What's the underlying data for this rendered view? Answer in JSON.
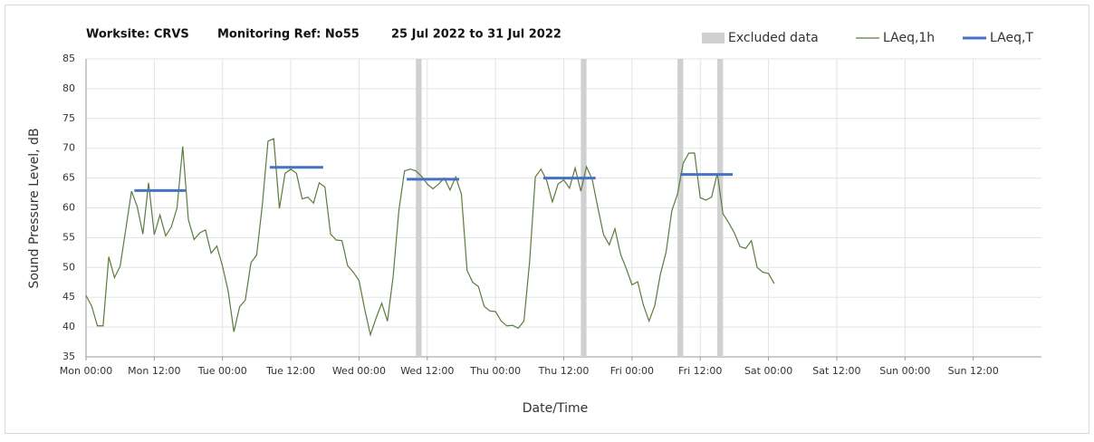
{
  "chart_data": {
    "type": "line",
    "title": [
      "Worksite: CRVS",
      "Monitoring Ref: No55",
      "25 Jul 2022 to 31 Jul 2022"
    ],
    "xlabel": "Date/Time",
    "ylabel": "Sound Pressure Level, dB",
    "xlim": [
      0,
      168
    ],
    "xticks": [
      {
        "value": 0,
        "label": "Mon 00:00"
      },
      {
        "value": 12,
        "label": "Mon 12:00"
      },
      {
        "value": 24,
        "label": "Tue 00:00"
      },
      {
        "value": 36,
        "label": "Tue 12:00"
      },
      {
        "value": 48,
        "label": "Wed 00:00"
      },
      {
        "value": 60,
        "label": "Wed 12:00"
      },
      {
        "value": 72,
        "label": "Thu 00:00"
      },
      {
        "value": 84,
        "label": "Thu 12:00"
      },
      {
        "value": 96,
        "label": "Fri 00:00"
      },
      {
        "value": 108,
        "label": "Fri 12:00"
      },
      {
        "value": 120,
        "label": "Sat 00:00"
      },
      {
        "value": 132,
        "label": "Sat 12:00"
      },
      {
        "value": 144,
        "label": "Sun 00:00"
      },
      {
        "value": 156,
        "label": "Sun 12:00"
      }
    ],
    "ylim": [
      35,
      85
    ],
    "yticks": [
      35,
      40,
      45,
      50,
      55,
      60,
      65,
      70,
      75,
      80,
      85
    ],
    "grid": true,
    "legend": "top-right",
    "excluded": {
      "name": "Excluded data",
      "color": "#d0d0d0",
      "ranges": [
        [
          58,
          59
        ],
        [
          87,
          88
        ],
        [
          104,
          105
        ],
        [
          111,
          112
        ]
      ]
    },
    "series": [
      {
        "name": "LAeq,1h",
        "color": "#5b7b3c",
        "x": [
          0,
          1,
          2,
          3,
          4,
          5,
          6,
          7,
          8,
          9,
          10,
          11,
          12,
          13,
          14,
          15,
          16,
          17,
          18,
          19,
          20,
          21,
          22,
          23,
          24,
          25,
          26,
          27,
          28,
          29,
          30,
          31,
          32,
          33,
          34,
          35,
          36,
          37,
          38,
          39,
          40,
          41,
          42,
          43,
          44,
          45,
          46,
          47,
          48,
          49,
          50,
          51,
          52,
          53,
          54,
          55,
          56,
          57,
          58,
          59,
          60,
          61,
          62,
          63,
          64,
          65,
          66,
          67,
          68,
          69,
          70,
          71,
          72,
          73,
          74,
          75,
          76,
          77,
          78,
          79,
          80,
          81,
          82,
          83,
          84,
          85,
          86,
          87,
          88,
          89,
          90,
          91,
          92,
          93,
          94,
          95,
          96,
          97,
          98,
          99,
          100,
          101,
          102,
          103,
          104,
          105,
          106,
          107,
          108,
          109,
          110,
          111,
          112,
          113,
          114,
          115,
          116,
          117,
          118,
          119,
          120,
          121
        ],
        "values": [
          45.3,
          43.5,
          40.2,
          40.2,
          51.8,
          48.3,
          50.2,
          56.5,
          62.8,
          60.2,
          55.6,
          64.2,
          55.5,
          58.8,
          55.3,
          56.8,
          60.0,
          70.3,
          58.0,
          54.7,
          55.8,
          56.3,
          52.4,
          53.6,
          50.2,
          46.0,
          39.2,
          43.4,
          44.5,
          50.8,
          52.1,
          60.5,
          71.2,
          71.6,
          59.9,
          65.8,
          66.5,
          65.8,
          61.5,
          61.8,
          60.8,
          64.2,
          63.5,
          55.6,
          54.6,
          54.5,
          50.3,
          49.2,
          47.8,
          43.0,
          38.7,
          41.5,
          44.0,
          41.0,
          48.5,
          59.5,
          66.2,
          66.5,
          66.2,
          65.3,
          64.0,
          63.2,
          64.0,
          65.0,
          63.0,
          65.2,
          62.3,
          49.5,
          47.5,
          46.8,
          43.5,
          42.7,
          42.6,
          41.0,
          40.2,
          40.3,
          39.8,
          41.0,
          51.0,
          65.2,
          66.5,
          64.6,
          61.0,
          64.0,
          64.7,
          63.3,
          66.7,
          62.8,
          66.9,
          64.8,
          60.0,
          55.5,
          53.8,
          56.5,
          52.2,
          49.8,
          47.1,
          47.6,
          43.7,
          41.0,
          43.6,
          48.9,
          52.6,
          59.5,
          62.3,
          67.5,
          69.2,
          69.2,
          61.7,
          61.3,
          61.8,
          65.8,
          59.0,
          57.5,
          55.8,
          53.5,
          53.2,
          54.5,
          50.0,
          49.2,
          49.0,
          47.3
        ]
      },
      {
        "name": "LAeq,T",
        "color": "#4472c4",
        "x": [
          [
            8.5,
            17.5
          ],
          [
            32.3,
            41.7
          ],
          [
            56.4,
            65.6
          ],
          [
            80.4,
            89.6
          ],
          [
            104.5,
            113.7
          ]
        ],
        "values": [
          62.9,
          66.8,
          64.8,
          65.0,
          65.6
        ]
      }
    ]
  }
}
